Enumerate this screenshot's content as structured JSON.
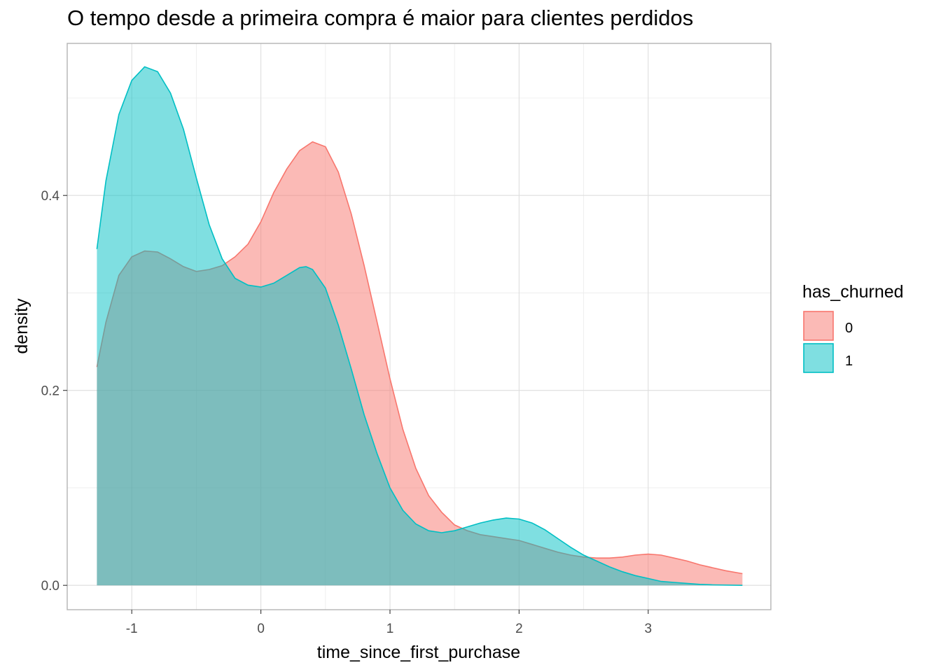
{
  "chart_data": {
    "type": "area",
    "title": "O tempo desde a primeira compra é maior para clientes perdidos",
    "xlabel": "time_since_first_purchase",
    "ylabel": "density",
    "xlim": [
      -1.5,
      3.95
    ],
    "ylim": [
      -0.025,
      0.556
    ],
    "x_ticks": [
      -1,
      0,
      1,
      2,
      3
    ],
    "x_tick_labels": [
      "-1",
      "0",
      "1",
      "2",
      "3"
    ],
    "y_ticks": [
      0.0,
      0.2,
      0.4
    ],
    "y_tick_labels": [
      "0.0",
      "0.2",
      "0.4"
    ],
    "grid": true,
    "legend": {
      "title": "has_churned",
      "placement": "right",
      "entries": [
        "0",
        "1"
      ]
    },
    "series": [
      {
        "name": "0",
        "fill": "#F8766D",
        "points": [
          [
            -1.27,
            0.224
          ],
          [
            -1.2,
            0.27
          ],
          [
            -1.1,
            0.318
          ],
          [
            -1.0,
            0.337
          ],
          [
            -0.9,
            0.343
          ],
          [
            -0.8,
            0.342
          ],
          [
            -0.7,
            0.335
          ],
          [
            -0.6,
            0.327
          ],
          [
            -0.5,
            0.322
          ],
          [
            -0.4,
            0.324
          ],
          [
            -0.3,
            0.328
          ],
          [
            -0.2,
            0.337
          ],
          [
            -0.1,
            0.35
          ],
          [
            0.0,
            0.373
          ],
          [
            0.1,
            0.403
          ],
          [
            0.2,
            0.427
          ],
          [
            0.3,
            0.446
          ],
          [
            0.4,
            0.455
          ],
          [
            0.5,
            0.45
          ],
          [
            0.6,
            0.424
          ],
          [
            0.7,
            0.381
          ],
          [
            0.8,
            0.328
          ],
          [
            0.9,
            0.27
          ],
          [
            1.0,
            0.212
          ],
          [
            1.1,
            0.16
          ],
          [
            1.2,
            0.12
          ],
          [
            1.3,
            0.092
          ],
          [
            1.4,
            0.075
          ],
          [
            1.5,
            0.062
          ],
          [
            1.6,
            0.056
          ],
          [
            1.7,
            0.052
          ],
          [
            1.8,
            0.05
          ],
          [
            1.9,
            0.048
          ],
          [
            2.0,
            0.046
          ],
          [
            2.1,
            0.042
          ],
          [
            2.2,
            0.038
          ],
          [
            2.3,
            0.034
          ],
          [
            2.4,
            0.031
          ],
          [
            2.5,
            0.029
          ],
          [
            2.6,
            0.028
          ],
          [
            2.7,
            0.028
          ],
          [
            2.8,
            0.029
          ],
          [
            2.9,
            0.031
          ],
          [
            3.0,
            0.032
          ],
          [
            3.1,
            0.031
          ],
          [
            3.2,
            0.028
          ],
          [
            3.3,
            0.025
          ],
          [
            3.4,
            0.021
          ],
          [
            3.5,
            0.018
          ],
          [
            3.6,
            0.015
          ],
          [
            3.73,
            0.012
          ]
        ]
      },
      {
        "name": "1",
        "fill": "#00BFC4",
        "points": [
          [
            -1.27,
            0.345
          ],
          [
            -1.2,
            0.415
          ],
          [
            -1.1,
            0.483
          ],
          [
            -1.0,
            0.518
          ],
          [
            -0.9,
            0.532
          ],
          [
            -0.8,
            0.527
          ],
          [
            -0.7,
            0.505
          ],
          [
            -0.6,
            0.468
          ],
          [
            -0.5,
            0.418
          ],
          [
            -0.4,
            0.37
          ],
          [
            -0.3,
            0.335
          ],
          [
            -0.2,
            0.315
          ],
          [
            -0.1,
            0.308
          ],
          [
            0.0,
            0.306
          ],
          [
            0.1,
            0.31
          ],
          [
            0.2,
            0.318
          ],
          [
            0.3,
            0.326
          ],
          [
            0.35,
            0.327
          ],
          [
            0.4,
            0.324
          ],
          [
            0.5,
            0.305
          ],
          [
            0.6,
            0.267
          ],
          [
            0.7,
            0.222
          ],
          [
            0.8,
            0.175
          ],
          [
            0.9,
            0.135
          ],
          [
            1.0,
            0.1
          ],
          [
            1.1,
            0.077
          ],
          [
            1.2,
            0.063
          ],
          [
            1.3,
            0.056
          ],
          [
            1.4,
            0.054
          ],
          [
            1.5,
            0.056
          ],
          [
            1.6,
            0.06
          ],
          [
            1.7,
            0.064
          ],
          [
            1.8,
            0.067
          ],
          [
            1.9,
            0.069
          ],
          [
            2.0,
            0.068
          ],
          [
            2.1,
            0.064
          ],
          [
            2.2,
            0.057
          ],
          [
            2.3,
            0.048
          ],
          [
            2.4,
            0.039
          ],
          [
            2.5,
            0.031
          ],
          [
            2.6,
            0.025
          ],
          [
            2.7,
            0.019
          ],
          [
            2.8,
            0.014
          ],
          [
            2.9,
            0.01
          ],
          [
            3.0,
            0.007
          ],
          [
            3.1,
            0.004
          ],
          [
            3.2,
            0.003
          ],
          [
            3.3,
            0.002
          ],
          [
            3.4,
            0.001
          ],
          [
            3.5,
            0.0005
          ],
          [
            3.73,
            0.0
          ]
        ]
      }
    ]
  }
}
